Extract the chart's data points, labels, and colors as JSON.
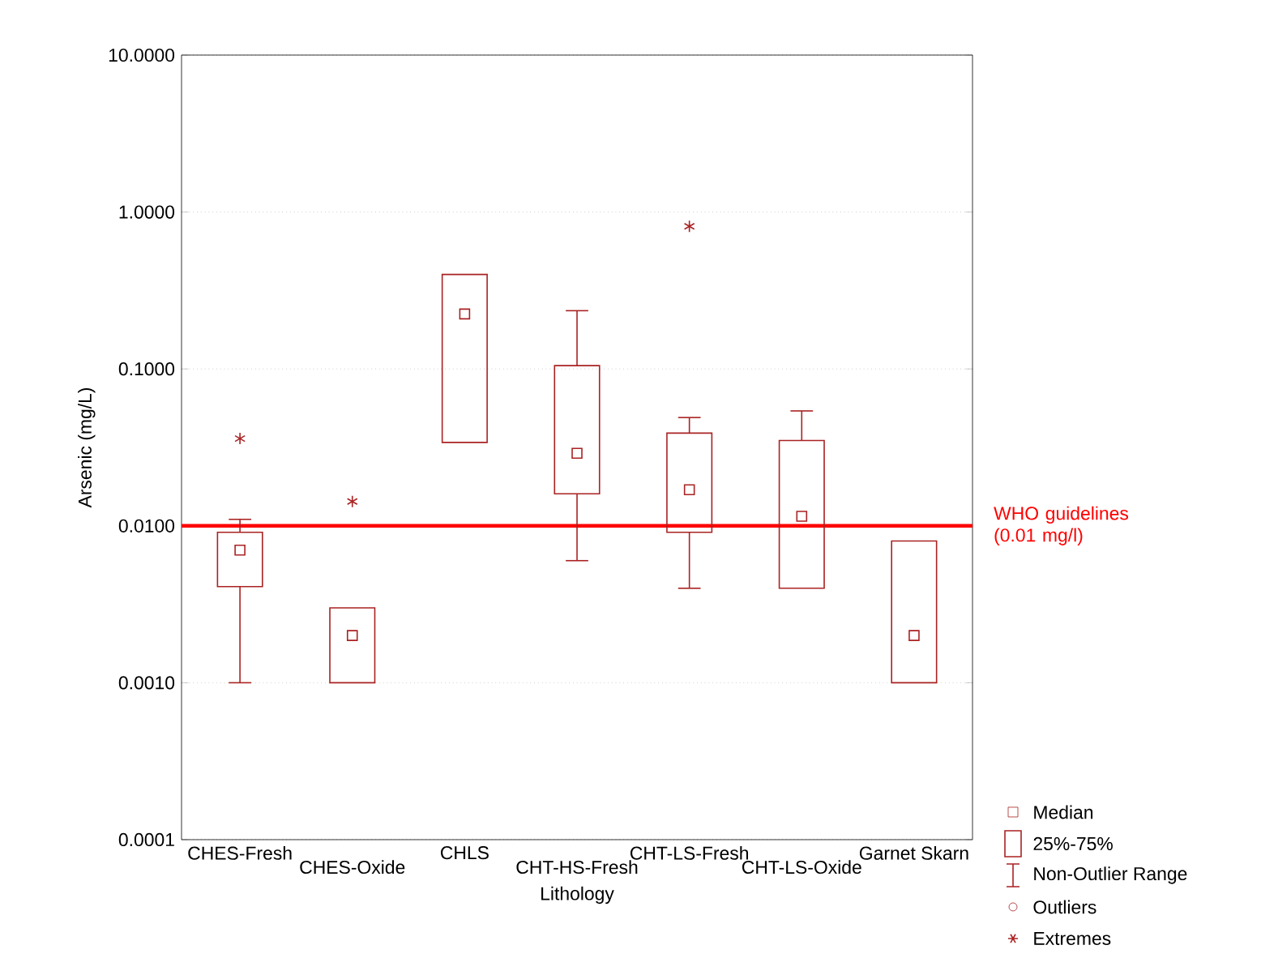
{
  "chart_data": {
    "type": "box",
    "xlabel": "Lithology",
    "ylabel": "Arsenic (mg/L)",
    "categories": [
      "CHES-Fresh",
      "CHES-Oxide",
      "CHLS",
      "CHT-HS-Fresh",
      "CHT-LS-Fresh",
      "CHT-LS-Oxide",
      "Garnet Skarn"
    ],
    "color": "#aa2222",
    "boxes": [
      {
        "low": 0.001,
        "q1": 0.0041,
        "median": 0.007,
        "q3": 0.0091,
        "high": 0.011,
        "outliers": [
          0.036
        ]
      },
      {
        "low": 0.001,
        "q1": 0.001,
        "median": 0.002,
        "q3": 0.003,
        "high": 0.003,
        "outliers": [
          0.0143
        ]
      },
      {
        "low": 0.034,
        "q1": 0.034,
        "median": 0.224,
        "q3": 0.4,
        "high": 0.4
      },
      {
        "low": 0.006,
        "q1": 0.016,
        "median": 0.029,
        "q3": 0.105,
        "high": 0.235
      },
      {
        "low": 0.004,
        "q1": 0.0091,
        "median": 0.017,
        "q3": 0.039,
        "high": 0.049,
        "outliers": [
          0.81
        ]
      },
      {
        "low": 0.004,
        "q1": 0.004,
        "median": 0.0115,
        "q3": 0.035,
        "high": 0.054
      },
      {
        "low": 0.001,
        "q1": 0.001,
        "median": 0.002,
        "q3": 0.008,
        "high": 0.008
      }
    ],
    "log": "y",
    "ylim": [
      0.0001,
      10
    ],
    "yticks": [
      {
        "value": 0.0001,
        "label": "0.0001"
      },
      {
        "value": 0.001,
        "label": "0.0010"
      },
      {
        "value": 0.01,
        "label": "0.0100"
      },
      {
        "value": 0.1,
        "label": "0.1000"
      },
      {
        "value": 1,
        "label": "1.0000"
      },
      {
        "value": 10,
        "label": "10.0000"
      }
    ],
    "grid": "y",
    "marker": "star",
    "ref_lines": [
      {
        "axis": "y",
        "value": 0.01,
        "label": "WHO guidelines (0.01 mg/l)",
        "color": "#ff0000"
      }
    ],
    "annotations": [
      "Median",
      "25%-75%",
      "Non-Outlier Range",
      "Outliers",
      "Extremes"
    ]
  }
}
